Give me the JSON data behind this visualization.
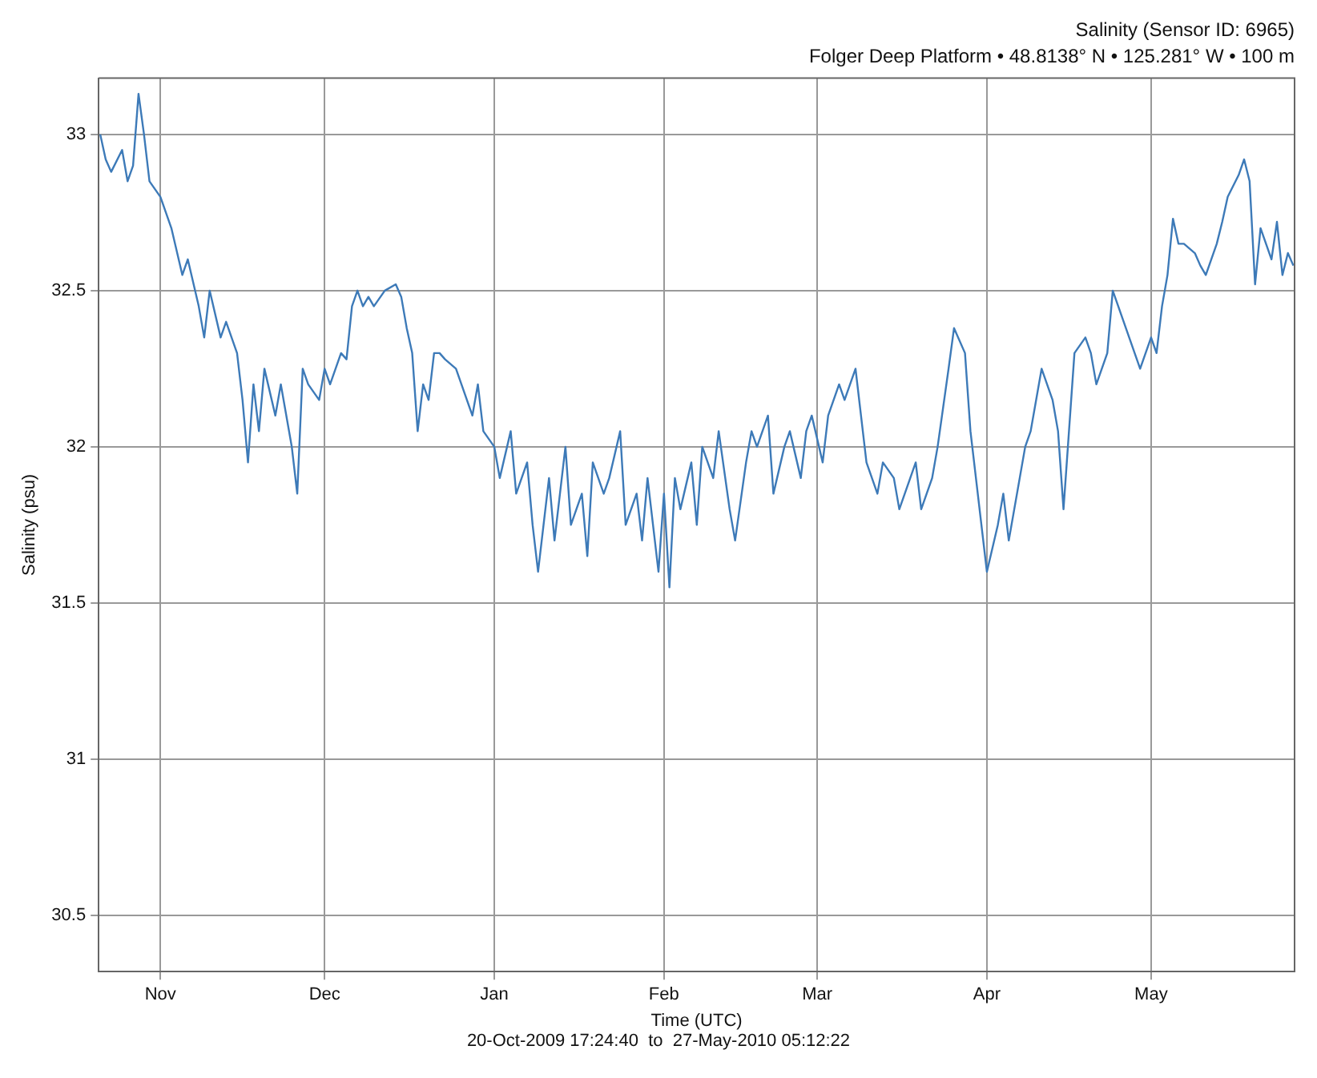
{
  "chart_data": {
    "type": "line",
    "title": "Salinity (Sensor ID: 6965)",
    "subtitle": "Folger Deep Platform • 48.8138° N • 125.281° W • 100 m",
    "xlabel": "Time (UTC)",
    "ylabel": "Salinity (psu)",
    "annotations": [
      "20-Oct-2009 17:24:40  to  27-May-2010 05:12:22"
    ],
    "x": [
      "2009-10-21",
      "2009-10-22",
      "2009-10-23",
      "2009-10-25",
      "2009-10-26",
      "2009-10-27",
      "2009-10-28",
      "2009-10-29",
      "2009-10-30",
      "2009-11-01",
      "2009-11-02",
      "2009-11-03",
      "2009-11-05",
      "2009-11-06",
      "2009-11-08",
      "2009-11-09",
      "2009-11-10",
      "2009-11-12",
      "2009-11-13",
      "2009-11-15",
      "2009-11-16",
      "2009-11-17",
      "2009-11-18",
      "2009-11-19",
      "2009-11-20",
      "2009-11-22",
      "2009-11-23",
      "2009-11-25",
      "2009-11-26",
      "2009-11-27",
      "2009-11-28",
      "2009-11-30",
      "2009-12-01",
      "2009-12-02",
      "2009-12-04",
      "2009-12-05",
      "2009-12-06",
      "2009-12-07",
      "2009-12-08",
      "2009-12-09",
      "2009-12-10",
      "2009-12-12",
      "2009-12-14",
      "2009-12-15",
      "2009-12-16",
      "2009-12-17",
      "2009-12-18",
      "2009-12-19",
      "2009-12-20",
      "2009-12-21",
      "2009-12-22",
      "2009-12-23",
      "2009-12-25",
      "2009-12-26",
      "2009-12-28",
      "2009-12-29",
      "2009-12-30",
      "2010-01-01",
      "2010-01-02",
      "2010-01-04",
      "2010-01-05",
      "2010-01-07",
      "2010-01-08",
      "2010-01-09",
      "2010-01-11",
      "2010-01-12",
      "2010-01-14",
      "2010-01-15",
      "2010-01-17",
      "2010-01-18",
      "2010-01-19",
      "2010-01-21",
      "2010-01-22",
      "2010-01-24",
      "2010-01-25",
      "2010-01-27",
      "2010-01-28",
      "2010-01-29",
      "2010-01-31",
      "2010-02-01",
      "2010-02-02",
      "2010-02-03",
      "2010-02-04",
      "2010-02-06",
      "2010-02-07",
      "2010-02-08",
      "2010-02-10",
      "2010-02-11",
      "2010-02-13",
      "2010-02-14",
      "2010-02-16",
      "2010-02-17",
      "2010-02-18",
      "2010-02-20",
      "2010-02-21",
      "2010-02-23",
      "2010-02-24",
      "2010-02-26",
      "2010-02-27",
      "2010-02-28",
      "2010-03-02",
      "2010-03-03",
      "2010-03-05",
      "2010-03-06",
      "2010-03-08",
      "2010-03-09",
      "2010-03-10",
      "2010-03-12",
      "2010-03-13",
      "2010-03-15",
      "2010-03-16",
      "2010-03-18",
      "2010-03-19",
      "2010-03-20",
      "2010-03-22",
      "2010-03-23",
      "2010-03-25",
      "2010-03-26",
      "2010-03-28",
      "2010-03-29",
      "2010-03-30",
      "2010-03-31",
      "2010-04-01",
      "2010-04-03",
      "2010-04-04",
      "2010-04-05",
      "2010-04-07",
      "2010-04-08",
      "2010-04-09",
      "2010-04-11",
      "2010-04-12",
      "2010-04-13",
      "2010-04-14",
      "2010-04-15",
      "2010-04-16",
      "2010-04-17",
      "2010-04-19",
      "2010-04-20",
      "2010-04-21",
      "2010-04-23",
      "2010-04-24",
      "2010-04-25",
      "2010-04-26",
      "2010-04-27",
      "2010-04-28",
      "2010-04-29",
      "2010-05-01",
      "2010-05-02",
      "2010-05-03",
      "2010-05-04",
      "2010-05-05",
      "2010-05-06",
      "2010-05-07",
      "2010-05-09",
      "2010-05-10",
      "2010-05-11",
      "2010-05-12",
      "2010-05-13",
      "2010-05-14",
      "2010-05-15",
      "2010-05-17",
      "2010-05-18",
      "2010-05-19",
      "2010-05-20",
      "2010-05-21",
      "2010-05-23",
      "2010-05-24",
      "2010-05-25",
      "2010-05-26",
      "2010-05-27"
    ],
    "series": [
      {
        "color": "#3d7ab8",
        "values": [
          33.0,
          32.92,
          32.88,
          32.95,
          32.85,
          32.9,
          33.13,
          33.0,
          32.85,
          32.8,
          32.75,
          32.7,
          32.55,
          32.6,
          32.45,
          32.35,
          32.5,
          32.35,
          32.4,
          32.3,
          32.15,
          31.95,
          32.2,
          32.05,
          32.25,
          32.1,
          32.2,
          32.0,
          31.85,
          32.25,
          32.2,
          32.15,
          32.25,
          32.2,
          32.3,
          32.28,
          32.45,
          32.5,
          32.45,
          32.48,
          32.45,
          32.5,
          32.52,
          32.48,
          32.38,
          32.3,
          32.05,
          32.2,
          32.15,
          32.3,
          32.3,
          32.28,
          32.25,
          32.2,
          32.1,
          32.2,
          32.05,
          32.0,
          31.9,
          32.05,
          31.85,
          31.95,
          31.75,
          31.6,
          31.9,
          31.7,
          32.0,
          31.75,
          31.85,
          31.65,
          31.95,
          31.85,
          31.9,
          32.05,
          31.75,
          31.85,
          31.7,
          31.9,
          31.6,
          31.85,
          31.55,
          31.9,
          31.8,
          31.95,
          31.75,
          32.0,
          31.9,
          32.05,
          31.8,
          31.7,
          31.95,
          32.05,
          32.0,
          32.1,
          31.85,
          32.0,
          32.05,
          31.9,
          32.05,
          32.1,
          31.95,
          32.1,
          32.2,
          32.15,
          32.25,
          32.1,
          31.95,
          31.85,
          31.95,
          31.9,
          31.8,
          31.9,
          31.95,
          31.8,
          31.9,
          32.0,
          32.25,
          32.38,
          32.3,
          32.05,
          31.9,
          31.75,
          31.6,
          31.75,
          31.85,
          31.7,
          31.9,
          32.0,
          32.05,
          32.25,
          32.2,
          32.15,
          32.05,
          31.8,
          32.05,
          32.3,
          32.35,
          32.3,
          32.2,
          32.3,
          32.5,
          32.45,
          32.4,
          32.35,
          32.3,
          32.25,
          32.35,
          32.3,
          32.45,
          32.55,
          32.73,
          32.65,
          32.65,
          32.62,
          32.58,
          32.55,
          32.6,
          32.65,
          32.72,
          32.8,
          32.87,
          32.92,
          32.85,
          32.52,
          32.7,
          32.6,
          32.72,
          32.55,
          32.62,
          32.58
        ]
      }
    ],
    "xlim": [
      "2009-10-20T17:24",
      "2010-05-27T05:12"
    ],
    "xticks": [
      {
        "value": "2009-11-01",
        "label": "Nov"
      },
      {
        "value": "2009-12-01",
        "label": "Dec"
      },
      {
        "value": "2010-01-01",
        "label": "Jan"
      },
      {
        "value": "2010-02-01",
        "label": "Feb"
      },
      {
        "value": "2010-03-01",
        "label": "Mar"
      },
      {
        "value": "2010-04-01",
        "label": "Apr"
      },
      {
        "value": "2010-05-01",
        "label": "May"
      }
    ],
    "ylim": [
      30.32,
      33.18
    ],
    "yticks": [
      30.5,
      31,
      31.5,
      32,
      32.5,
      33
    ],
    "grid": true,
    "legend": false,
    "marker": "none",
    "line_style": "solid"
  }
}
